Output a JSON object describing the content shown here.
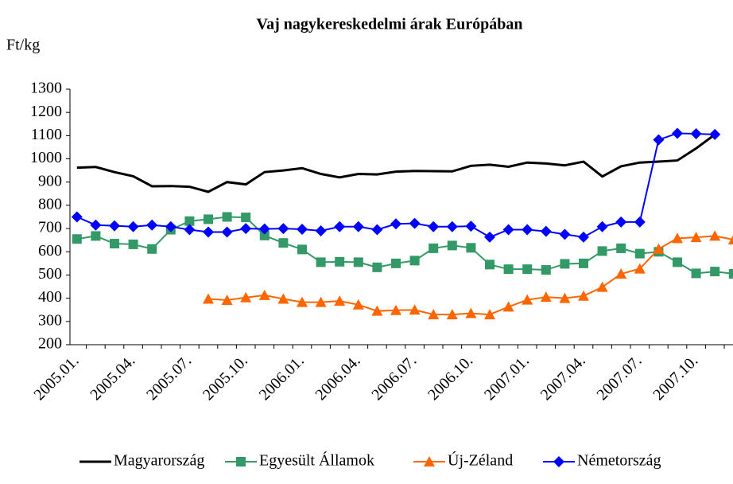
{
  "chart_data": {
    "type": "line",
    "title": "Vaj nagykereskedelmi árak Európában",
    "y_label": "Ft/kg",
    "categories": [
      "2005.01.",
      null,
      null,
      "2005.04.",
      null,
      null,
      "2005.07.",
      null,
      null,
      "2005.10.",
      null,
      null,
      "2006.01.",
      null,
      null,
      "2006.04.",
      null,
      null,
      "2006.07.",
      null,
      null,
      "2006.10.",
      null,
      null,
      "2007.01.",
      null,
      null,
      "2007.04.",
      null,
      null,
      "2007.07.",
      null,
      null,
      "2007.10.",
      null,
      null
    ],
    "ylim": [
      200,
      1300
    ],
    "yticks": [
      200,
      300,
      400,
      500,
      600,
      700,
      800,
      900,
      1000,
      1100,
      1200,
      1300
    ],
    "grid": false,
    "legend": "bottom",
    "series": [
      {
        "name": "Magyarország",
        "color": "#000000",
        "marker": "none",
        "values": [
          962,
          965,
          943,
          925,
          882,
          883,
          880,
          858,
          900,
          890,
          943,
          950,
          960,
          935,
          920,
          935,
          933,
          945,
          948,
          947,
          946,
          970,
          975,
          966,
          984,
          980,
          972,
          988,
          924,
          968,
          984,
          988,
          993,
          1045,
          1105,
          null
        ]
      },
      {
        "name": "Egyesült Államok",
        "color": "#339966",
        "marker": "square",
        "values": [
          655,
          668,
          635,
          632,
          612,
          695,
          732,
          740,
          750,
          748,
          670,
          638,
          610,
          555,
          557,
          555,
          533,
          550,
          562,
          615,
          627,
          617,
          545,
          525,
          525,
          522,
          548,
          550,
          603,
          615,
          592,
          600,
          555,
          507,
          515,
          505
        ]
      },
      {
        "name": "Új-Zéland",
        "color": "#ff6600",
        "marker": "triangle",
        "values": [
          null,
          null,
          null,
          null,
          null,
          null,
          null,
          397,
          392,
          403,
          413,
          397,
          383,
          383,
          388,
          372,
          345,
          348,
          350,
          330,
          330,
          335,
          330,
          363,
          393,
          405,
          400,
          410,
          448,
          505,
          527,
          612,
          658,
          662,
          668,
          652
        ]
      },
      {
        "name": "Németország",
        "color": "#0000ff",
        "marker": "diamond",
        "values": [
          750,
          715,
          712,
          708,
          715,
          708,
          695,
          685,
          685,
          700,
          698,
          700,
          697,
          690,
          708,
          708,
          695,
          720,
          722,
          708,
          708,
          710,
          663,
          695,
          695,
          688,
          675,
          663,
          708,
          728,
          728,
          1082,
          1110,
          1108,
          1105,
          null
        ]
      }
    ]
  }
}
